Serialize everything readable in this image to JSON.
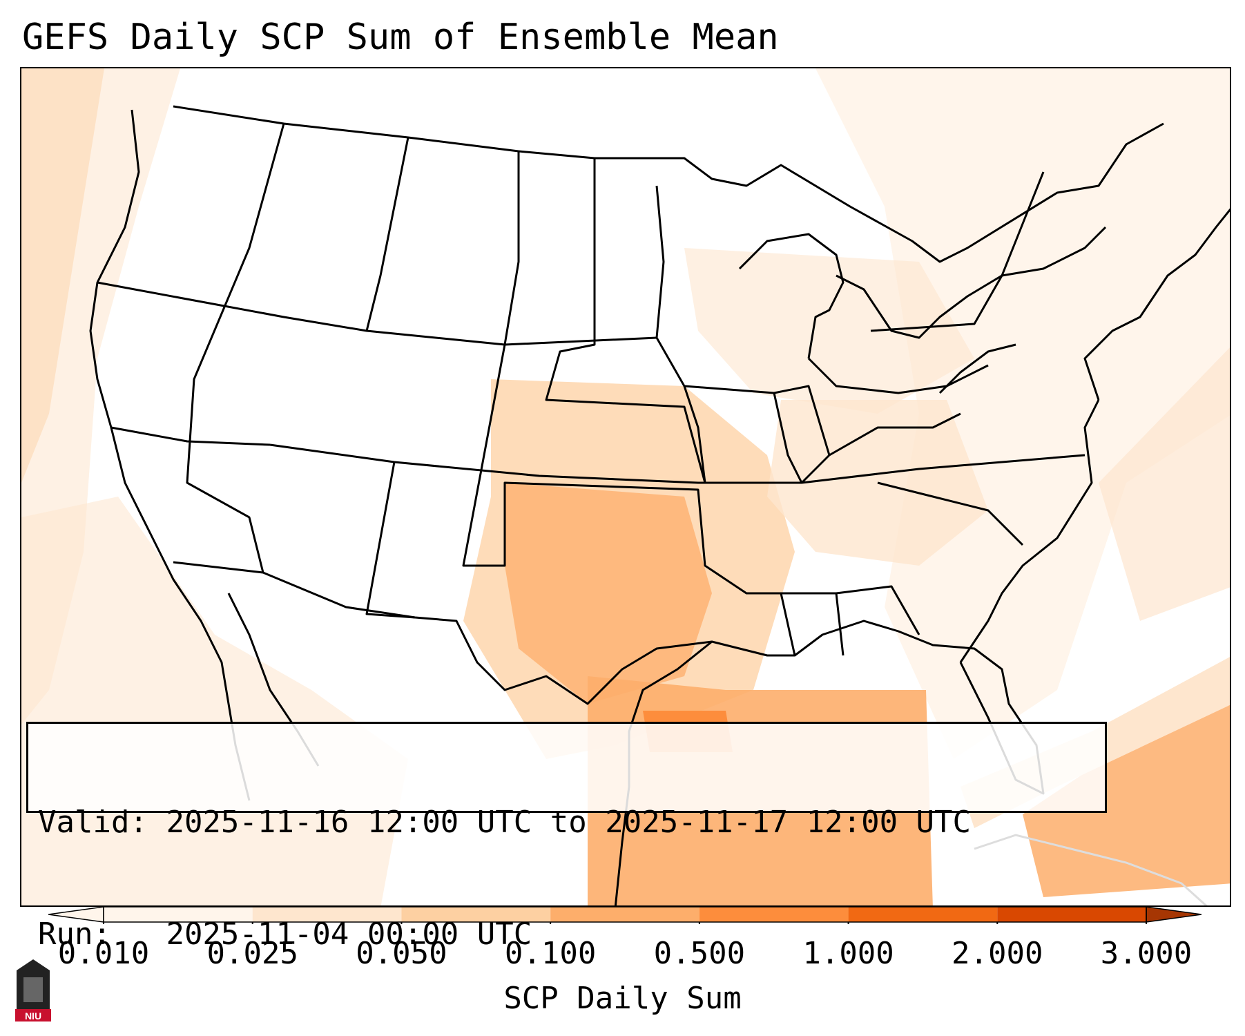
{
  "title": "GEFS Daily SCP Sum of Ensemble Mean",
  "info": {
    "valid_label": "Valid:",
    "valid_value": "2025-11-16 12:00 UTC to 2025-11-17 12:00 UTC",
    "run_label": "Run:",
    "run_value": "2025-11-04 00:00 UTC"
  },
  "colorbar": {
    "label": "SCP Daily Sum",
    "ticks": [
      "0.010",
      "0.025",
      "0.050",
      "0.100",
      "0.500",
      "1.000",
      "2.000",
      "3.000"
    ],
    "colors": [
      "#fff5eb",
      "#fee6ce",
      "#fdd0a2",
      "#fdae6b",
      "#fd8d3c",
      "#f16913",
      "#d94801",
      "#a63603"
    ]
  },
  "logo": {
    "text": "NIU",
    "color": "#c8102e"
  }
}
